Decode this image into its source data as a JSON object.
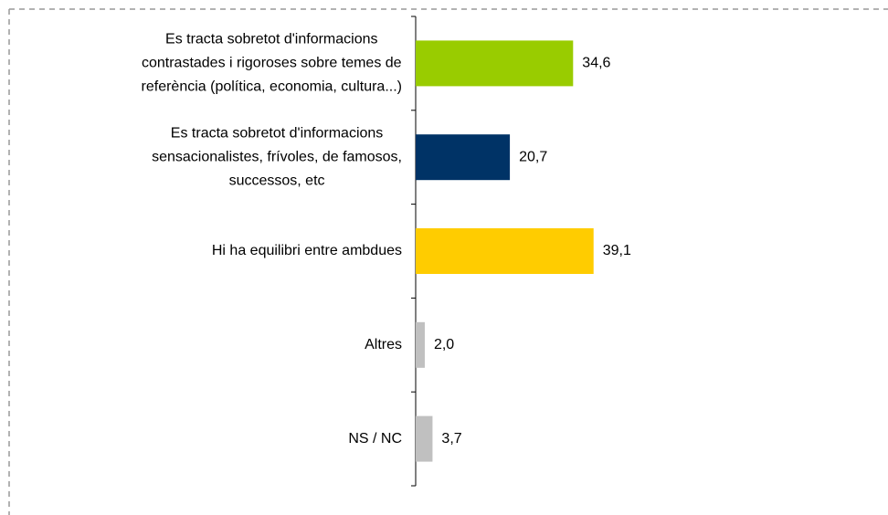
{
  "chart_data": {
    "type": "bar",
    "orientation": "horizontal",
    "categories": [
      [
        "Es tracta sobretot d'informacions",
        "contrastades i rigoroses sobre temes de",
        "referència (política, economia, cultura...)"
      ],
      [
        "Es tracta sobretot d'informacions",
        "sensacionalistes, frívoles, de famosos,",
        "successos, etc"
      ],
      [
        "Hi ha equilibri entre ambdues"
      ],
      [
        "Altres"
      ],
      [
        "NS / NC"
      ]
    ],
    "values": [
      34.6,
      20.7,
      39.1,
      2.0,
      3.7
    ],
    "value_labels": [
      "34,6",
      "20,7",
      "39,1",
      "2,0",
      "3,7"
    ],
    "colors": [
      "#99cc00",
      "#003366",
      "#ffcc00",
      "#c0c0c0",
      "#c0c0c0"
    ]
  }
}
